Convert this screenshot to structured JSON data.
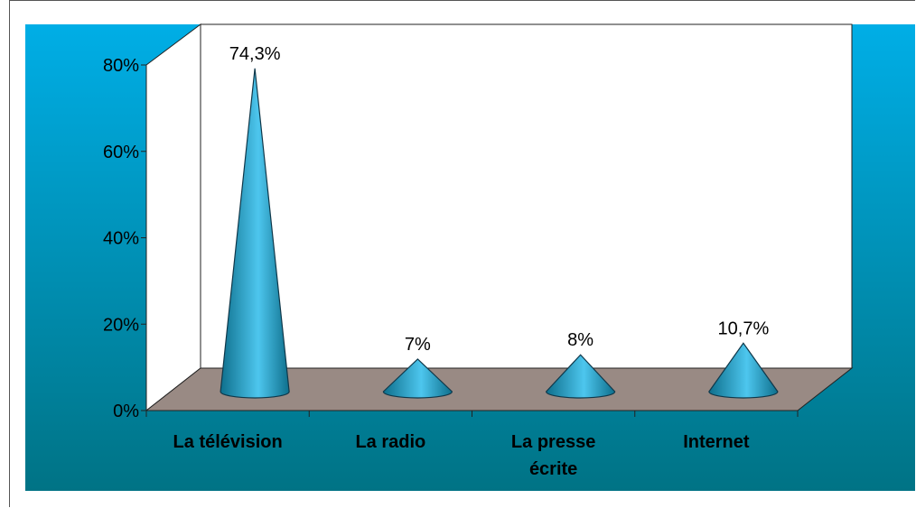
{
  "chart_data": {
    "type": "bar",
    "style": "3d-cone",
    "categories": [
      "La télévision",
      "La radio",
      "La presse écrite",
      "Internet"
    ],
    "category_lines": [
      [
        "La télévision"
      ],
      [
        "La radio"
      ],
      [
        "La presse",
        "écrite"
      ],
      [
        "Internet"
      ]
    ],
    "values": [
      74.3,
      7,
      8,
      10.7
    ],
    "data_labels": [
      "74,3%",
      "7%",
      "8%",
      "10,7%"
    ],
    "yticks": [
      "0%",
      "20%",
      "40%",
      "60%",
      "80%"
    ],
    "ylim": [
      0,
      80
    ],
    "grid": false,
    "legend": "none",
    "colors": {
      "background_top": "#00aee6",
      "background_bottom": "#007385",
      "floor": "#998a84",
      "walls": "#ffffff",
      "cone_light": "#4dc6ee",
      "cone_dark": "#0e6f8c"
    }
  }
}
